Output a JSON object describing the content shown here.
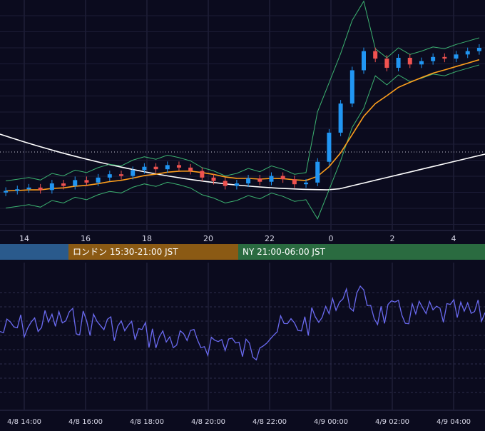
{
  "chart_data": [
    {
      "type": "candlestick",
      "panel": "price",
      "x_range": [
        12.0,
        4.9
      ],
      "x_axis_ticks": [
        "14",
        "16",
        "18",
        "20",
        "22",
        "0",
        "2",
        "4"
      ],
      "candle_up_color": "#2196f3",
      "candle_down_color": "#ef5350",
      "candles_sampled_close": [
        0.0,
        0.2,
        0.4,
        0.1,
        0.9,
        0.6,
        1.3,
        1.0,
        1.6,
        2.0,
        1.8,
        2.5,
        2.9,
        2.6,
        3.1,
        2.8,
        2.4,
        1.6,
        1.2,
        0.6,
        0.9,
        1.5,
        1.1,
        1.8,
        1.4,
        0.8,
        1.0,
        3.5,
        7.0,
        10.5,
        14.5,
        16.8,
        15.9,
        14.8,
        16.0,
        15.2,
        15.6,
        16.1,
        15.9,
        16.4,
        16.8,
        17.2
      ],
      "series": [
        {
          "name": "",
          "color": "#ffffff",
          "style": "long moving average"
        },
        {
          "name": "",
          "color": "#ff9f1c",
          "style": "short moving average"
        },
        {
          "name": "",
          "color": "#3cb371",
          "style": "upper/lower bands"
        }
      ],
      "reference_line": "dotted horizontal"
    },
    {
      "type": "line",
      "panel": "oscillator",
      "color": "#6a6af0",
      "grid": "dashed",
      "x_axis_labels": [
        "4/8 14:00",
        "4/8 16:00",
        "4/8 18:00",
        "4/8 20:00",
        "4/8 22:00",
        "4/9 00:00",
        "4/9 02:00",
        "4/9 04:00"
      ]
    }
  ],
  "sessions": [
    {
      "label": "",
      "color": "#2a5a8c"
    },
    {
      "label": "ロンドン 15:30-21:00 JST",
      "color": "#8b5a14"
    },
    {
      "label": "NY 21:00-06:00 JST",
      "color": "#2a6b40"
    }
  ],
  "theme": {
    "background": "#0b0b1e",
    "grid": "#2a2a44",
    "text": "#d8d8e8"
  }
}
